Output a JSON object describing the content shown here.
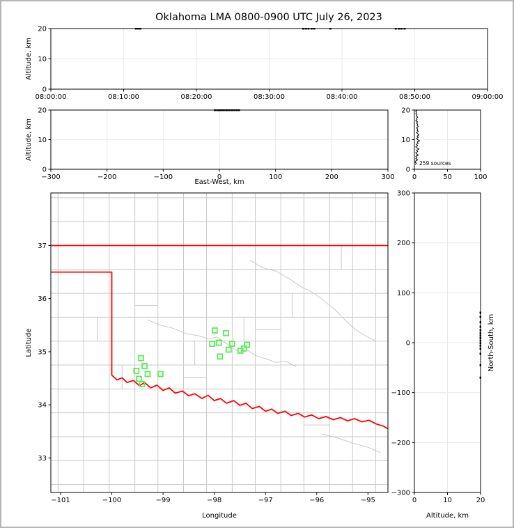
{
  "title": "Oklahoma LMA 0800-0900 UTC July 26, 2023",
  "colors": {
    "source_marker": "#58ee58",
    "state_border": "#ff0000",
    "county_line": "#c9c9c9",
    "river_line": "#c9c9c9",
    "grid_line": "#ebebeb",
    "noise_mark": "#000000",
    "frame": "#000000"
  },
  "chart_data": [
    {
      "id": "time_height",
      "type": "scatter",
      "title": "",
      "xlabel": "",
      "ylabel": "Altitude, km",
      "xtick_labels": [
        "08:00:00",
        "08:10:00",
        "08:20:00",
        "08:30:00",
        "08:40:00",
        "08:50:00",
        "09:00:00"
      ],
      "ytick_values": [
        0,
        10,
        20
      ],
      "ytick_labels": [
        "0",
        "10",
        "20"
      ],
      "ylim": [
        0,
        20
      ],
      "top_edge_marks_time_frac": [
        0.195,
        0.2,
        0.205,
        0.578,
        0.584,
        0.59,
        0.597,
        0.603,
        0.64,
        0.79,
        0.797,
        0.803,
        0.81
      ]
    },
    {
      "id": "ew_height",
      "type": "scatter",
      "xlabel": "East-West, km",
      "ylabel": "Altitude, km",
      "xtick_values": [
        -300,
        -200,
        -100,
        0,
        100,
        200,
        300
      ],
      "xtick_labels": [
        "−300",
        "−200",
        "−100",
        "0",
        "100",
        "200",
        "300"
      ],
      "ytick_values": [
        0,
        10,
        20
      ],
      "ytick_labels": [
        "0",
        "10",
        "20"
      ],
      "xlim": [
        -300,
        300
      ],
      "ylim": [
        0,
        20
      ],
      "top_edge_marks_km": [
        -8,
        -4,
        -1,
        2,
        5,
        8,
        12,
        15,
        19,
        23,
        27,
        31,
        35
      ]
    },
    {
      "id": "alt_histogram",
      "type": "line",
      "annotation": "259 sources",
      "xtick_values": [
        0,
        50,
        100
      ],
      "xtick_labels": [
        "0",
        "50",
        "100"
      ],
      "ytick_values": [
        0,
        10,
        20
      ],
      "ytick_labels": [
        "0",
        "10",
        "20"
      ],
      "xlim": [
        0,
        100
      ],
      "ylim": [
        0,
        20
      ],
      "profile_alt_count": [
        [
          1.6,
          1
        ],
        [
          2.0,
          3
        ],
        [
          2.4,
          1
        ],
        [
          2.8,
          2
        ],
        [
          3.2,
          5
        ],
        [
          3.6,
          2
        ],
        [
          4.0,
          4
        ],
        [
          4.4,
          2
        ],
        [
          4.8,
          6
        ],
        [
          5.2,
          3
        ],
        [
          5.6,
          2
        ],
        [
          6.0,
          5
        ],
        [
          6.4,
          3
        ],
        [
          6.8,
          7
        ],
        [
          7.2,
          4
        ],
        [
          7.6,
          2
        ],
        [
          8.0,
          5
        ],
        [
          8.4,
          3
        ],
        [
          8.8,
          6
        ],
        [
          9.2,
          4
        ],
        [
          9.6,
          8
        ],
        [
          10.0,
          5
        ],
        [
          10.4,
          3
        ],
        [
          10.8,
          6
        ],
        [
          11.2,
          4
        ],
        [
          11.6,
          7
        ],
        [
          12.0,
          5
        ],
        [
          12.4,
          3
        ],
        [
          12.8,
          6
        ],
        [
          13.2,
          4
        ],
        [
          13.6,
          5
        ],
        [
          14.0,
          3
        ],
        [
          14.4,
          6
        ],
        [
          14.8,
          4
        ],
        [
          15.2,
          5
        ],
        [
          15.6,
          3
        ],
        [
          16.0,
          5
        ],
        [
          16.4,
          2
        ],
        [
          16.8,
          4
        ],
        [
          17.2,
          3
        ],
        [
          17.6,
          5
        ],
        [
          18.0,
          3
        ],
        [
          18.4,
          4
        ],
        [
          18.8,
          2
        ],
        [
          19.2,
          3
        ],
        [
          19.6,
          2
        ],
        [
          19.9,
          4
        ]
      ]
    },
    {
      "id": "plan_map",
      "type": "scatter",
      "xlabel": "Longitude",
      "ylabel": "Latitude",
      "xtick_values": [
        -101,
        -100,
        -99,
        -98,
        -97,
        -96,
        -95
      ],
      "xtick_labels": [
        "−101",
        "−100",
        "−99",
        "−98",
        "−97",
        "−96",
        "−95"
      ],
      "ytick_values": [
        33,
        34,
        35,
        36,
        37
      ],
      "ytick_labels": [
        "33",
        "34",
        "35",
        "36",
        "37"
      ],
      "lon_range": [
        -101.19,
        -94.61
      ],
      "lat_range": [
        32.35,
        37.99
      ],
      "sources_lonlat": [
        [
          -97.99,
          35.4
        ],
        [
          -97.77,
          35.35
        ],
        [
          -97.91,
          35.17
        ],
        [
          -98.04,
          35.15
        ],
        [
          -97.65,
          35.15
        ],
        [
          -97.72,
          35.04
        ],
        [
          -97.49,
          35.02
        ],
        [
          -97.42,
          35.06
        ],
        [
          -97.36,
          35.13
        ],
        [
          -97.89,
          34.91
        ],
        [
          -99.43,
          34.88
        ],
        [
          -99.36,
          34.73
        ],
        [
          -99.52,
          34.64
        ],
        [
          -99.3,
          34.58
        ],
        [
          -99.05,
          34.58
        ],
        [
          -99.47,
          34.49
        ],
        [
          -99.41,
          34.39
        ]
      ],
      "state_border": {
        "north_lat37": [
          [
            -101.19,
            37.0
          ],
          [
            -94.61,
            37.0
          ]
        ],
        "west_and_red_river": [
          [
            -101.19,
            36.5
          ],
          [
            -100.0,
            36.5
          ],
          [
            -100.0,
            34.56
          ],
          [
            -99.9,
            34.47
          ],
          [
            -99.8,
            34.51
          ],
          [
            -99.7,
            34.42
          ],
          [
            -99.58,
            34.46
          ],
          [
            -99.46,
            34.36
          ],
          [
            -99.36,
            34.42
          ],
          [
            -99.24,
            34.32
          ],
          [
            -99.12,
            34.37
          ],
          [
            -99.0,
            34.27
          ],
          [
            -98.88,
            34.32
          ],
          [
            -98.76,
            34.22
          ],
          [
            -98.62,
            34.26
          ],
          [
            -98.5,
            34.17
          ],
          [
            -98.38,
            34.21
          ],
          [
            -98.24,
            34.12
          ],
          [
            -98.12,
            34.18
          ],
          [
            -98.0,
            34.08
          ],
          [
            -97.88,
            34.12
          ],
          [
            -97.76,
            34.03
          ],
          [
            -97.62,
            34.08
          ],
          [
            -97.5,
            33.99
          ],
          [
            -97.38,
            34.03
          ],
          [
            -97.26,
            33.93
          ],
          [
            -97.12,
            33.97
          ],
          [
            -97.0,
            33.88
          ],
          [
            -96.88,
            33.92
          ],
          [
            -96.76,
            33.84
          ],
          [
            -96.62,
            33.88
          ],
          [
            -96.5,
            33.8
          ],
          [
            -96.36,
            33.84
          ],
          [
            -96.24,
            33.77
          ],
          [
            -96.1,
            33.81
          ],
          [
            -95.96,
            33.74
          ],
          [
            -95.82,
            33.78
          ],
          [
            -95.68,
            33.72
          ],
          [
            -95.54,
            33.76
          ],
          [
            -95.4,
            33.7
          ],
          [
            -95.26,
            33.74
          ],
          [
            -95.12,
            33.68
          ],
          [
            -94.98,
            33.71
          ],
          [
            -94.84,
            33.64
          ],
          [
            -94.7,
            33.6
          ],
          [
            -94.61,
            33.55
          ]
        ]
      },
      "county_lons": [
        -101.05,
        -100.55,
        -100.05,
        -99.55,
        -99.1,
        -98.6,
        -98.15,
        -97.65,
        -97.2,
        -96.7,
        -96.25,
        -95.75,
        -95.3,
        -94.85
      ],
      "county_lats": [
        32.5,
        32.95,
        33.4,
        33.85,
        34.3,
        34.75,
        35.2,
        35.65,
        36.1,
        36.55,
        37.0,
        37.45,
        37.9
      ],
      "county_extra_segments": [
        [
          -99.8,
          34.3,
          -99.8,
          34.75
        ],
        [
          -98.38,
          34.75,
          -98.38,
          35.2
        ],
        [
          -97.42,
          35.2,
          -97.42,
          35.65
        ],
        [
          -96.48,
          35.65,
          -96.48,
          36.1
        ],
        [
          -100.28,
          35.2,
          -100.28,
          35.65
        ],
        [
          -95.52,
          36.55,
          -95.52,
          37.0
        ],
        [
          -98.6,
          34.52,
          -98.15,
          34.52
        ],
        [
          -97.2,
          35.42,
          -96.7,
          35.42
        ],
        [
          -99.55,
          35.87,
          -99.1,
          35.87
        ],
        [
          -96.25,
          33.62,
          -95.75,
          33.62
        ]
      ],
      "rivers": [
        [
          [
            -99.3,
            35.6
          ],
          [
            -99.05,
            35.5
          ],
          [
            -98.8,
            35.44
          ],
          [
            -98.55,
            35.34
          ],
          [
            -98.3,
            35.3
          ],
          [
            -98.1,
            35.24
          ],
          [
            -97.95,
            35.28
          ],
          [
            -97.8,
            35.18
          ],
          [
            -97.65,
            35.08
          ],
          [
            -97.5,
            34.99
          ],
          [
            -97.35,
            35.03
          ],
          [
            -97.2,
            34.93
          ],
          [
            -97.0,
            34.87
          ],
          [
            -96.8,
            34.8
          ],
          [
            -96.6,
            34.82
          ],
          [
            -96.4,
            34.72
          ]
        ],
        [
          [
            -97.3,
            36.72
          ],
          [
            -97.05,
            36.58
          ],
          [
            -96.8,
            36.52
          ],
          [
            -96.55,
            36.38
          ],
          [
            -96.3,
            36.22
          ],
          [
            -96.05,
            36.1
          ],
          [
            -95.85,
            35.95
          ],
          [
            -95.65,
            35.8
          ],
          [
            -95.45,
            35.6
          ],
          [
            -95.25,
            35.42
          ],
          [
            -95.05,
            35.3
          ],
          [
            -94.85,
            35.2
          ]
        ],
        [
          [
            -95.9,
            33.45
          ],
          [
            -95.6,
            33.38
          ],
          [
            -95.3,
            33.28
          ],
          [
            -95.0,
            33.2
          ],
          [
            -94.75,
            33.1
          ]
        ]
      ]
    },
    {
      "id": "ns_height",
      "type": "scatter",
      "xlabel": "Altitude, km",
      "ylabel": "North-South, km",
      "xtick_values": [
        0,
        10,
        20
      ],
      "xtick_labels": [
        "0",
        "10",
        "20"
      ],
      "ytick_values": [
        300,
        200,
        100,
        0,
        -100,
        -200,
        -300
      ],
      "ytick_labels": [
        "300",
        "200",
        "100",
        "0",
        "−100",
        "−200",
        "−300"
      ],
      "xlim": [
        0,
        20
      ],
      "ylim": [
        -300,
        300
      ],
      "right_edge_marks_km": [
        -70,
        -45,
        -22,
        -12,
        -6,
        -1,
        4,
        9,
        14,
        19,
        25,
        32,
        41,
        52,
        60
      ]
    }
  ]
}
